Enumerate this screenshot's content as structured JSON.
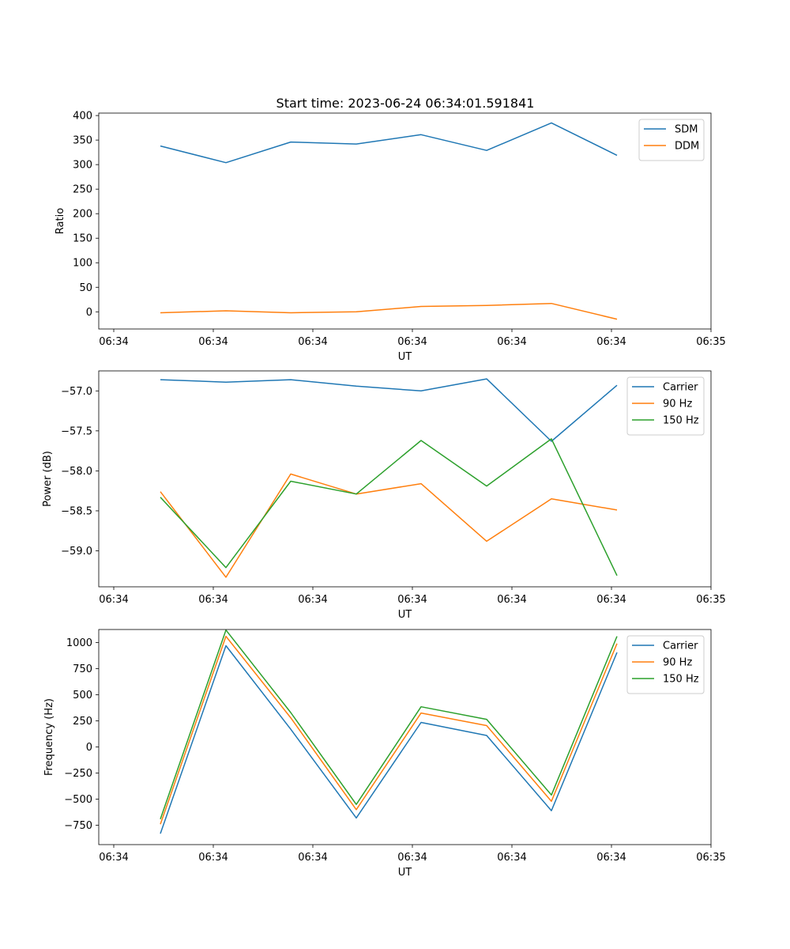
{
  "figure": {
    "title": "Start time: 2023-06-24 06:34:01.591841"
  },
  "chart_data": [
    {
      "type": "line",
      "xlabel": "UT",
      "ylabel": "Ratio",
      "xtick_labels": [
        "06:34",
        "06:34",
        "06:34",
        "06:34",
        "06:34",
        "06:34",
        "06:35"
      ],
      "yticks": [
        0,
        50,
        100,
        150,
        200,
        250,
        300,
        350,
        400
      ],
      "ylim": [
        -35,
        405
      ],
      "legend_position": "top-right",
      "series": [
        {
          "name": "SDM",
          "color": "#1f77b4",
          "values": [
            338,
            304,
            346,
            342,
            361,
            329,
            385,
            319
          ]
        },
        {
          "name": "DDM",
          "color": "#ff7f0e",
          "values": [
            -2,
            2,
            -2,
            0,
            11,
            13,
            17,
            -15
          ]
        }
      ]
    },
    {
      "type": "line",
      "xlabel": "UT",
      "ylabel": "Power (dB)",
      "xtick_labels": [
        "06:34",
        "06:34",
        "06:34",
        "06:34",
        "06:34",
        "06:34",
        "06:35"
      ],
      "yticks": [
        -57.0,
        -57.5,
        -58.0,
        -58.5,
        -59.0
      ],
      "ytick_labels": [
        "−57.0",
        "−57.5",
        "−58.0",
        "−58.5",
        "−59.0"
      ],
      "ylim": [
        -59.45,
        -56.75
      ],
      "legend_position": "top-right",
      "series": [
        {
          "name": "Carrier",
          "color": "#1f77b4",
          "values": [
            -56.86,
            -56.89,
            -56.86,
            -56.94,
            -57.0,
            -56.85,
            -57.63,
            -56.93
          ]
        },
        {
          "name": "90 Hz",
          "color": "#ff7f0e",
          "values": [
            -58.26,
            -59.33,
            -58.04,
            -58.29,
            -58.16,
            -58.88,
            -58.35,
            -58.49
          ]
        },
        {
          "name": "150 Hz",
          "color": "#2ca02c",
          "values": [
            -58.33,
            -59.21,
            -58.13,
            -58.29,
            -57.62,
            -58.19,
            -57.6,
            -59.31
          ]
        }
      ]
    },
    {
      "type": "line",
      "xlabel": "UT",
      "ylabel": "Frequency (Hz)",
      "xtick_labels": [
        "06:34",
        "06:34",
        "06:34",
        "06:34",
        "06:34",
        "06:34",
        "06:35"
      ],
      "yticks": [
        1000,
        750,
        500,
        250,
        0,
        -250,
        -500,
        -750
      ],
      "ytick_labels": [
        "1000",
        "750",
        "500",
        "250",
        "0",
        "−250",
        "−500",
        "−750"
      ],
      "ylim": [
        -935,
        1125
      ],
      "legend_position": "top-right",
      "series": [
        {
          "name": "Carrier",
          "color": "#1f77b4",
          "values": [
            -830,
            970,
            170,
            -680,
            235,
            110,
            -610,
            905
          ]
        },
        {
          "name": "90 Hz",
          "color": "#ff7f0e",
          "values": [
            -740,
            1060,
            280,
            -600,
            325,
            205,
            -520,
            990
          ]
        },
        {
          "name": "150 Hz",
          "color": "#2ca02c",
          "values": [
            -690,
            1120,
            330,
            -550,
            385,
            265,
            -460,
            1060
          ]
        }
      ]
    }
  ]
}
